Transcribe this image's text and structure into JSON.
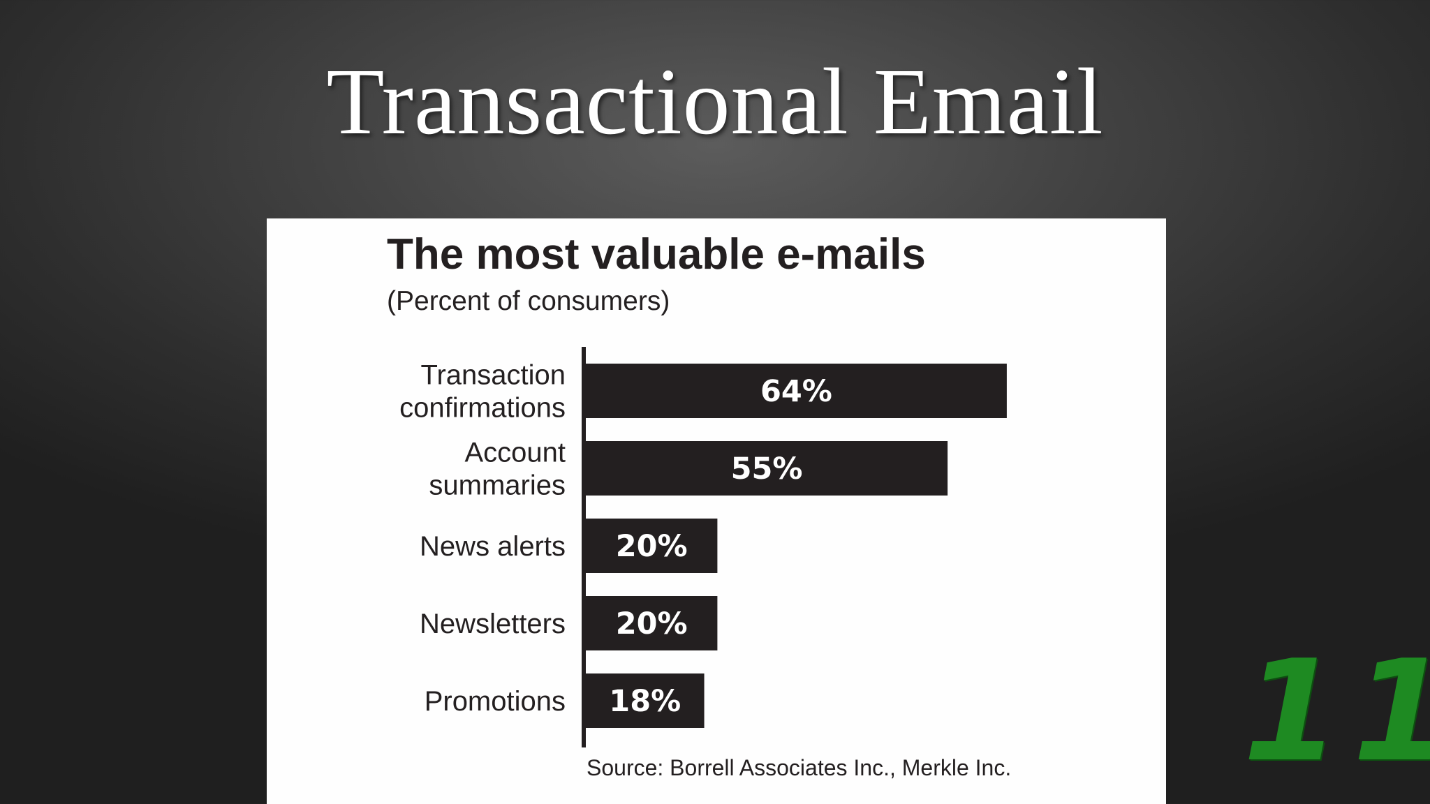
{
  "slide": {
    "title": "Transactional Email",
    "number": "11"
  },
  "colors": {
    "bar": "#231f20",
    "bar_label": "#ffffff",
    "text": "#231f20",
    "slide_number": "#1e8a22"
  },
  "chart_data": {
    "type": "bar",
    "orientation": "horizontal",
    "title": "The most valuable e-mails",
    "subtitle": "(Percent of consumers)",
    "categories": [
      [
        "Transaction",
        "confirmations"
      ],
      [
        "Account",
        "summaries"
      ],
      [
        "News alerts"
      ],
      [
        "Newsletters"
      ],
      [
        "Promotions"
      ]
    ],
    "values": [
      64,
      55,
      20,
      20,
      18
    ],
    "value_labels": [
      "64%",
      "55%",
      "20%",
      "20%",
      "18%"
    ],
    "unit": "%",
    "source": "Source: Borrell Associates Inc., Merkle Inc.",
    "grid": false,
    "legend": "none"
  }
}
